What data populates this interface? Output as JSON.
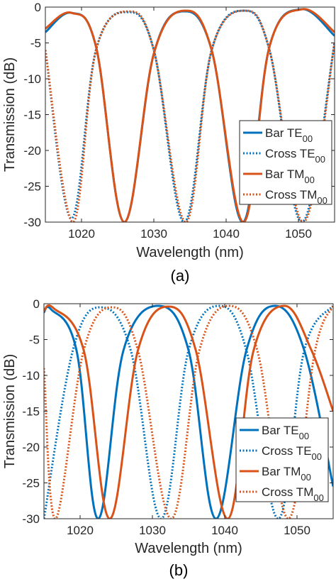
{
  "chart_data": [
    {
      "type": "line",
      "panel_label": "(a)",
      "xlabel": "Wavelength (nm)",
      "ylabel": "Transmission (dB)",
      "xlim": [
        1015,
        1055
      ],
      "ylim": [
        -30,
        0
      ],
      "xticks": [
        1020,
        1030,
        1040,
        1050
      ],
      "yticks": [
        -30,
        -25,
        -20,
        -15,
        -10,
        -5,
        0
      ],
      "grid": false,
      "legend_position": "lower-right",
      "series": [
        {
          "name": "Bar TE",
          "sub": "00",
          "style": "solid",
          "color": "#0072BD",
          "x": [
            1015,
            1018.6,
            1022,
            1025.9,
            1030,
            1034.0,
            1038,
            1042.3,
            1046,
            1050.4,
            1055
          ],
          "y": [
            -3.5,
            -0.8,
            -5.5,
            -30,
            -6.5,
            -0.6,
            -6.0,
            -30,
            -5.5,
            -0.3,
            -4.0
          ]
        },
        {
          "name": "Cross TE",
          "sub": "00",
          "style": "dotted",
          "color": "#0072BD",
          "x": [
            1015,
            1018.6,
            1022,
            1026.3,
            1030,
            1034.2,
            1038,
            1042.4,
            1046,
            1050.5,
            1055
          ],
          "y": [
            -6.0,
            -29.5,
            -6.0,
            -0.7,
            -6.0,
            -30,
            -6.0,
            -0.5,
            -6.0,
            -30,
            -5.0
          ]
        },
        {
          "name": "Bar TM",
          "sub": "00",
          "style": "solid",
          "color": "#D95319",
          "x": [
            1015,
            1018.6,
            1022,
            1025.9,
            1030,
            1034.2,
            1038,
            1042.4,
            1046,
            1050.5,
            1055
          ],
          "y": [
            -3.0,
            -0.8,
            -5.5,
            -30,
            -6.5,
            -0.5,
            -6.0,
            -30,
            -5.5,
            -0.3,
            -3.5
          ]
        },
        {
          "name": "Cross TM",
          "sub": "00",
          "style": "dotted",
          "color": "#D95319",
          "x": [
            1015,
            1018.8,
            1022,
            1026.5,
            1030,
            1034.4,
            1038,
            1042.6,
            1046,
            1050.7,
            1055
          ],
          "y": [
            -6.0,
            -30,
            -6.0,
            -0.6,
            -6.0,
            -30,
            -6.0,
            -0.5,
            -6.0,
            -30,
            -5.0
          ]
        }
      ]
    },
    {
      "type": "line",
      "panel_label": "(b)",
      "xlabel": "Wavelength (nm)",
      "ylabel": "Transmission (dB)",
      "xlim": [
        1015,
        1055
      ],
      "ylim": [
        -30,
        0
      ],
      "xticks": [
        1020,
        1030,
        1040,
        1050
      ],
      "yticks": [
        -30,
        -25,
        -20,
        -15,
        -10,
        -5,
        0
      ],
      "grid": false,
      "legend_position": "lower-right",
      "series": [
        {
          "name": "Bar TE",
          "sub": "00",
          "style": "solid",
          "color": "#0072BD",
          "x": [
            1015,
            1016.0,
            1019.5,
            1022.5,
            1026,
            1030.8,
            1035,
            1038.8,
            1043,
            1047.0,
            1051,
            1055
          ],
          "y": [
            -1.2,
            -0.8,
            -6.5,
            -30,
            -6.5,
            -0.3,
            -6.5,
            -30,
            -6.5,
            -0.3,
            -6.5,
            -25.5
          ]
        },
        {
          "name": "Cross TE",
          "sub": "00",
          "style": "dotted",
          "color": "#0072BD",
          "x": [
            1015,
            1019,
            1022.8,
            1027,
            1031.2,
            1035,
            1039.2,
            1043,
            1047.4,
            1051,
            1054.9
          ],
          "y": [
            -30,
            -6.5,
            -0.5,
            -6.5,
            -30,
            -6.5,
            -0.3,
            -6.5,
            -30,
            -6.5,
            -0.3
          ]
        },
        {
          "name": "Bar TM",
          "sub": "00",
          "style": "solid",
          "color": "#D95319",
          "x": [
            1015,
            1016.3,
            1020.5,
            1024.1,
            1028,
            1032.2,
            1036,
            1040.4,
            1044,
            1048.3,
            1052,
            1055
          ],
          "y": [
            -1.0,
            -0.6,
            -6.5,
            -30,
            -6.5,
            -0.4,
            -6.5,
            -30,
            -6.5,
            -0.3,
            -6.5,
            -15
          ]
        },
        {
          "name": "Cross TM",
          "sub": "00",
          "style": "dotted",
          "color": "#D95319",
          "x": [
            1015,
            1016.6,
            1020.5,
            1024.4,
            1028,
            1032.6,
            1036.5,
            1040.6,
            1044.5,
            1048.8,
            1052.5,
            1055
          ],
          "y": [
            -9.0,
            -30,
            -6.5,
            -0.5,
            -6.5,
            -30,
            -6.5,
            -0.3,
            -6.5,
            -30,
            -6.5,
            -0.3
          ]
        }
      ]
    }
  ]
}
